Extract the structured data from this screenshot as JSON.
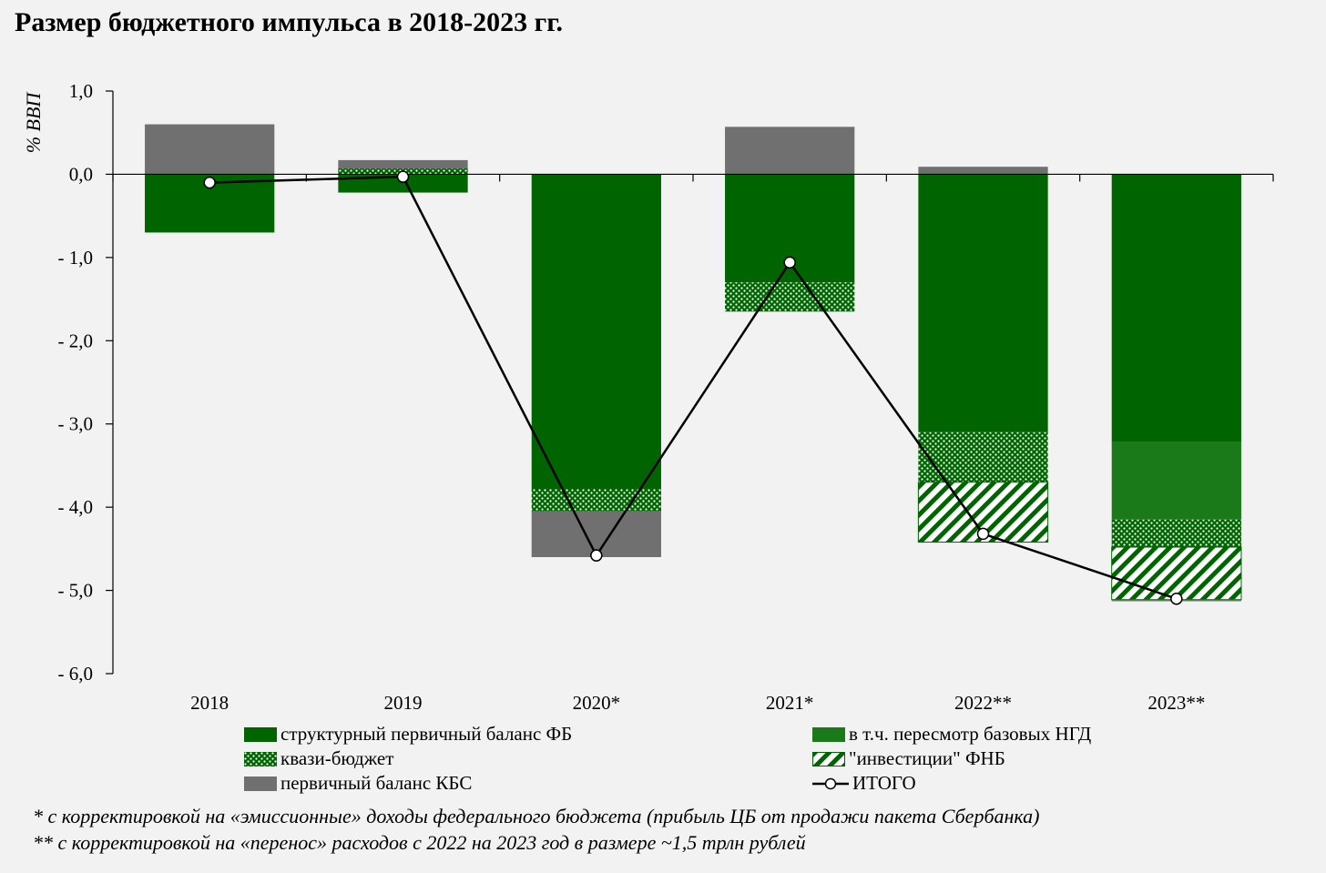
{
  "title": "Размер бюджетного импульса в 2018-2023 гг.",
  "chart_data": {
    "type": "bar",
    "stacked": true,
    "title": "Размер бюджетного импульса в 2018-2023 гг.",
    "ylabel": "% ВВП",
    "xlabel": "",
    "ylim": [
      -6.0,
      1.0
    ],
    "yticks": [
      1.0,
      0.0,
      -1.0,
      -2.0,
      -3.0,
      -4.0,
      -5.0,
      -6.0
    ],
    "ytick_labels": [
      "1,0",
      "0,0",
      "- 1,0",
      "- 2,0",
      "- 3,0",
      "- 4,0",
      "- 5,0",
      "- 6,0"
    ],
    "categories": [
      "2018",
      "2019",
      "2020*",
      "2021*",
      "2022**",
      "2023**"
    ],
    "series": [
      {
        "name": "структурный первичный баланс ФБ",
        "kind": "bar",
        "pattern": "solid",
        "color": "#006400",
        "values": [
          -0.7,
          -0.22,
          -3.78,
          -1.3,
          -3.1,
          -3.22
        ]
      },
      {
        "name": "в т.ч. пересмотр базовых НГД",
        "kind": "bar",
        "pattern": "solid",
        "color": "#1a7a1a",
        "values": [
          0,
          0,
          0,
          0,
          0,
          -0.93
        ]
      },
      {
        "name": "квази-бюджет",
        "kind": "bar",
        "pattern": "dots",
        "color": "#006400",
        "values": [
          0,
          0.07,
          -0.27,
          -0.35,
          -0.6,
          -0.33
        ]
      },
      {
        "name": "\"инвестиции\" ФНБ",
        "kind": "bar",
        "pattern": "hatch",
        "color": "#006400",
        "values": [
          0,
          0,
          0,
          0,
          -0.72,
          -0.63
        ]
      },
      {
        "name": "первичный баланс КБС",
        "kind": "bar",
        "pattern": "solid",
        "color": "#707070",
        "values": [
          0.6,
          0.1,
          -0.55,
          0.57,
          0.09,
          -0.02
        ]
      },
      {
        "name": "ИТОГО",
        "kind": "line",
        "color": "#000000",
        "values": [
          -0.1,
          -0.03,
          -4.58,
          -1.06,
          -4.32,
          -5.1
        ]
      }
    ],
    "legend_placement": "bottom",
    "grid": false
  },
  "notes": [
    "* с корректировкой на «эмиссионные» доходы федерального бюджета (прибыль ЦБ от продажи пакета Сбербанка)",
    "** с корректировкой на «перенос» расходов с 2022 на 2023 год в размере ~1,5 трлн рублей"
  ]
}
